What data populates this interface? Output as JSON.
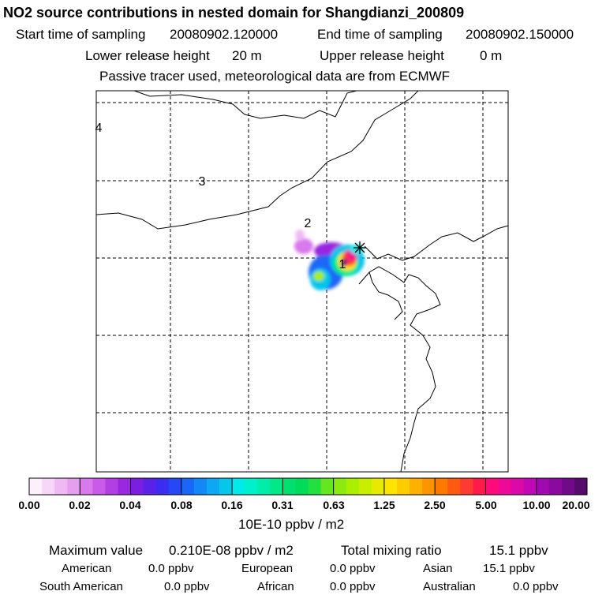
{
  "header": {
    "title": "NO2 source contributions in nested domain for Shangdianzi_200809",
    "start_label": "Start time of sampling",
    "start_value": "20080902.120000",
    "end_label": "End time of sampling",
    "end_value": "20080902.150000",
    "lower_label": "Lower release height",
    "lower_value": "20 m",
    "upper_label": "Upper release height",
    "upper_value": "0 m",
    "note": "Passive tracer used, meteorological data are from ECMWF"
  },
  "map": {
    "day_labels": [
      "4",
      "3",
      "2",
      "1"
    ],
    "station_marker": "Shangdianzi station (black star)"
  },
  "colorbar": {
    "ticks": [
      "0.00",
      "0.02",
      "0.04",
      "0.08",
      "0.16",
      "0.31",
      "0.63",
      "1.25",
      "2.50",
      "5.00",
      "10.00",
      "20.00"
    ],
    "unit": "10E-10 ppbv / m2",
    "colors": [
      [
        "#fdf0fd",
        "#f7d6f9",
        "#efbaf4",
        "#e59ef0"
      ],
      [
        "#d879ec",
        "#c85ce8",
        "#b23fe4",
        "#9a28e0"
      ],
      [
        "#7a1fe0",
        "#5a21e8",
        "#3a2cf0",
        "#2448f6"
      ],
      [
        "#1a66f8",
        "#1288f6",
        "#0ca8f2",
        "#06c6ea"
      ],
      [
        "#00eaea",
        "#00f0cc",
        "#00eeaa",
        "#00e888"
      ],
      [
        "#00e070",
        "#00dc58",
        "#22e040",
        "#66e620"
      ],
      [
        "#8cea10",
        "#aaee00",
        "#c8ee00",
        "#e6ea00"
      ],
      [
        "#ffe400",
        "#ffcc00",
        "#ffb000",
        "#ff9400"
      ],
      [
        "#ff7800",
        "#ff5a10",
        "#ff3a30",
        "#ff1a4a"
      ],
      [
        "#ff0a7a",
        "#f00896",
        "#dc08a8",
        "#c208b6"
      ],
      [
        "#a008b0",
        "#8a0aa0",
        "#700a88",
        "#560a6c"
      ]
    ]
  },
  "stats": {
    "max_label": "Maximum value",
    "max_value": "0.210E-08 ppbv / m2",
    "total_label": "Total mixing ratio",
    "total_value": "15.1 ppbv",
    "american_label": "American",
    "american_value": "0.0 ppbv",
    "european_label": "European",
    "european_value": "0.0 ppbv",
    "asian_label": "Asian",
    "asian_value": "15.1 ppbv",
    "south_american_label": "South American",
    "south_american_value": "0.0 ppbv",
    "african_label": "African",
    "african_value": "0.0 ppbv",
    "australian_label": "Australian",
    "australian_value": "0.0 ppbv"
  }
}
